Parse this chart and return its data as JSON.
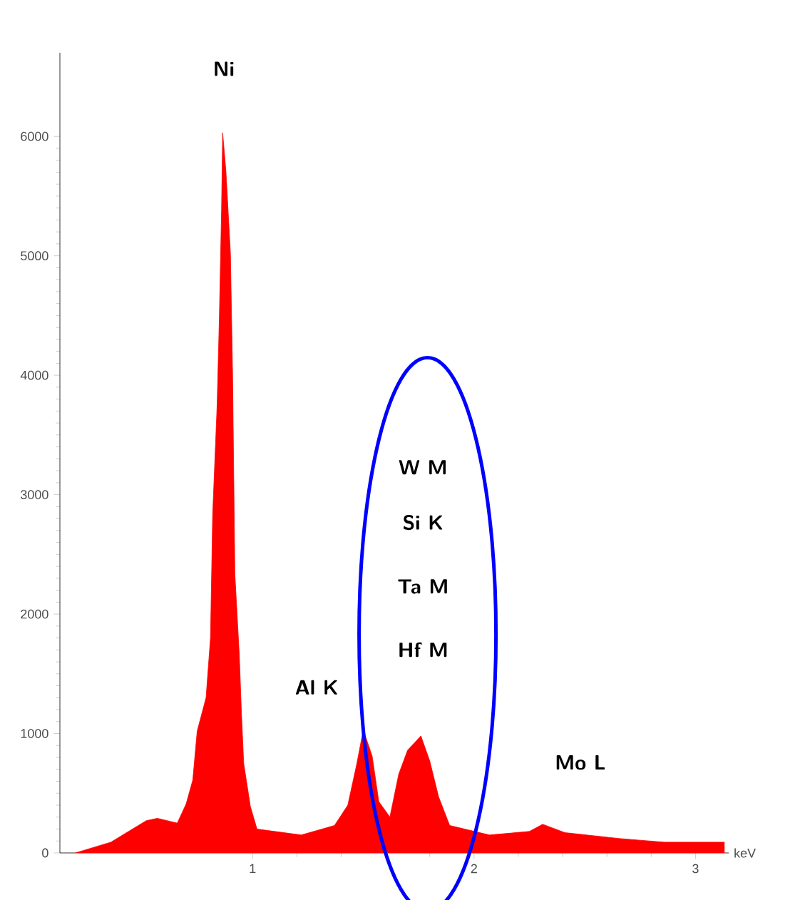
{
  "chart_data": {
    "type": "area",
    "xlabel": "keV",
    "xlim": [
      0.13,
      3.15
    ],
    "ylim": [
      0,
      6700
    ],
    "xticks": [
      1,
      2,
      3
    ],
    "yticks": [
      0,
      1000,
      2000,
      3000,
      4000,
      5000,
      6000
    ],
    "x": [
      0.2,
      0.36,
      0.52,
      0.57,
      0.66,
      0.7,
      0.73,
      0.75,
      0.79,
      0.81,
      0.82,
      0.84,
      0.85,
      0.86,
      0.865,
      0.88,
      0.9,
      0.91,
      0.92,
      0.94,
      0.95,
      0.96,
      0.99,
      1.02,
      1.22,
      1.37,
      1.43,
      1.47,
      1.5,
      1.54,
      1.57,
      1.62,
      1.66,
      1.7,
      1.76,
      1.8,
      1.84,
      1.89,
      2.07,
      2.25,
      2.31,
      2.41,
      2.66,
      2.86,
      3.13
    ],
    "series": [
      {
        "color": "#ff0000",
        "values": [
          0,
          90,
          270,
          290,
          250,
          410,
          610,
          1020,
          1300,
          1800,
          2840,
          3750,
          4480,
          5390,
          6030,
          5700,
          5020,
          3980,
          2340,
          1660,
          1160,
          750,
          390,
          200,
          150,
          230,
          400,
          740,
          1030,
          810,
          430,
          300,
          660,
          860,
          980,
          770,
          470,
          230,
          150,
          180,
          240,
          170,
          120,
          90,
          90
        ]
      }
    ],
    "annotations": [
      "Ni",
      "Al K",
      "W M",
      "Si K",
      "Ta M",
      "Hf M",
      "Mo L"
    ]
  }
}
